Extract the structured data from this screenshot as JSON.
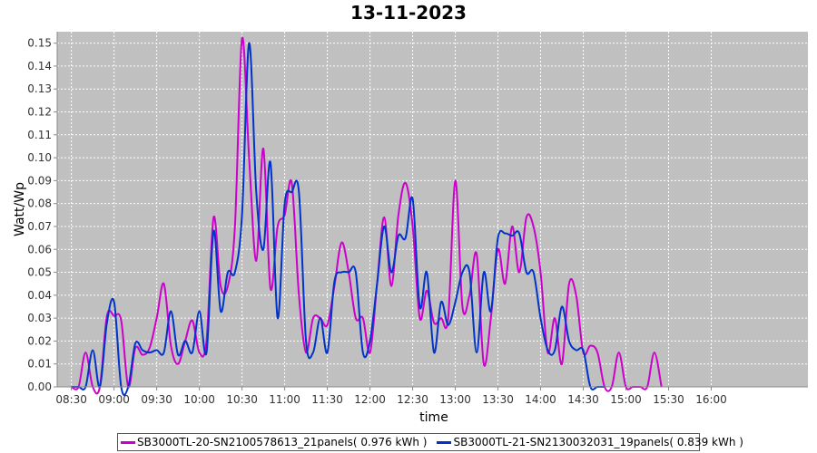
{
  "chart_data": {
    "type": "line",
    "title": "13-11-2023",
    "xlabel": "time",
    "ylabel": "Watt/Wp",
    "ylim": [
      0,
      0.155
    ],
    "xlim": [
      "08:20",
      "17:08"
    ],
    "grid": true,
    "legend_position": "bottom",
    "x_ticks": [
      "08:30",
      "09:00",
      "09:30",
      "10:00",
      "10:30",
      "11:00",
      "11:30",
      "12:00",
      "12:30",
      "13:00",
      "13:30",
      "14:00",
      "14:30",
      "15:00",
      "15:30",
      "16:00"
    ],
    "y_ticks": [
      "0.00",
      "0.01",
      "0.02",
      "0.03",
      "0.04",
      "0.05",
      "0.06",
      "0.07",
      "0.08",
      "0.09",
      "0.10",
      "0.11",
      "0.12",
      "0.13",
      "0.14",
      "0.15"
    ],
    "series": [
      {
        "name": "SB3000TL-20-SN2100578613_21panels( 0.976 kWh )",
        "color": "#cc00cc",
        "points": [
          [
            "08:30",
            0.0
          ],
          [
            "08:35",
            0.0
          ],
          [
            "08:40",
            0.015
          ],
          [
            "08:45",
            0.0
          ],
          [
            "08:50",
            0.0
          ],
          [
            "08:55",
            0.031
          ],
          [
            "09:00",
            0.031
          ],
          [
            "09:05",
            0.029
          ],
          [
            "09:10",
            0.0
          ],
          [
            "09:15",
            0.017
          ],
          [
            "09:20",
            0.014
          ],
          [
            "09:25",
            0.017
          ],
          [
            "09:30",
            0.03
          ],
          [
            "09:35",
            0.045
          ],
          [
            "09:40",
            0.018
          ],
          [
            "09:45",
            0.01
          ],
          [
            "09:50",
            0.02
          ],
          [
            "09:55",
            0.029
          ],
          [
            "10:00",
            0.015
          ],
          [
            "10:05",
            0.02
          ],
          [
            "10:10",
            0.074
          ],
          [
            "10:15",
            0.044
          ],
          [
            "10:20",
            0.044
          ],
          [
            "10:25",
            0.07
          ],
          [
            "10:30",
            0.152
          ],
          [
            "10:35",
            0.1
          ],
          [
            "10:40",
            0.055
          ],
          [
            "10:45",
            0.104
          ],
          [
            "10:50",
            0.043
          ],
          [
            "10:55",
            0.07
          ],
          [
            "11:00",
            0.075
          ],
          [
            "11:05",
            0.089
          ],
          [
            "11:10",
            0.04
          ],
          [
            "11:15",
            0.015
          ],
          [
            "11:20",
            0.03
          ],
          [
            "11:25",
            0.03
          ],
          [
            "11:30",
            0.027
          ],
          [
            "11:35",
            0.044
          ],
          [
            "11:40",
            0.063
          ],
          [
            "11:45",
            0.05
          ],
          [
            "11:50",
            0.03
          ],
          [
            "11:55",
            0.03
          ],
          [
            "12:00",
            0.015
          ],
          [
            "12:05",
            0.045
          ],
          [
            "12:10",
            0.074
          ],
          [
            "12:15",
            0.044
          ],
          [
            "12:20",
            0.075
          ],
          [
            "12:25",
            0.089
          ],
          [
            "12:30",
            0.07
          ],
          [
            "12:35",
            0.03
          ],
          [
            "12:40",
            0.042
          ],
          [
            "12:45",
            0.028
          ],
          [
            "12:50",
            0.03
          ],
          [
            "12:55",
            0.03
          ],
          [
            "13:00",
            0.09
          ],
          [
            "13:05",
            0.035
          ],
          [
            "13:10",
            0.04
          ],
          [
            "13:15",
            0.058
          ],
          [
            "13:20",
            0.01
          ],
          [
            "13:25",
            0.03
          ],
          [
            "13:30",
            0.06
          ],
          [
            "13:35",
            0.045
          ],
          [
            "13:40",
            0.07
          ],
          [
            "13:45",
            0.05
          ],
          [
            "13:50",
            0.074
          ],
          [
            "13:55",
            0.07
          ],
          [
            "14:00",
            0.05
          ],
          [
            "14:05",
            0.015
          ],
          [
            "14:10",
            0.03
          ],
          [
            "14:15",
            0.01
          ],
          [
            "14:20",
            0.045
          ],
          [
            "14:25",
            0.04
          ],
          [
            "14:30",
            0.015
          ],
          [
            "14:35",
            0.018
          ],
          [
            "14:40",
            0.015
          ],
          [
            "14:45",
            0.0
          ],
          [
            "14:50",
            0.0
          ],
          [
            "14:55",
            0.015
          ],
          [
            "15:00",
            0.0
          ],
          [
            "15:05",
            0.0
          ],
          [
            "15:10",
            0.0
          ],
          [
            "15:15",
            0.0
          ],
          [
            "15:20",
            0.015
          ],
          [
            "15:25",
            0.0
          ]
        ]
      },
      {
        "name": "SB3000TL-21-SN2130032031_19panels( 0.839 kWh )",
        "color": "#0033cc",
        "points": [
          [
            "08:30",
            0.0
          ],
          [
            "08:35",
            0.0
          ],
          [
            "08:40",
            0.0
          ],
          [
            "08:45",
            0.016
          ],
          [
            "08:50",
            0.0
          ],
          [
            "08:55",
            0.028
          ],
          [
            "09:00",
            0.037
          ],
          [
            "09:05",
            0.0
          ],
          [
            "09:10",
            0.0
          ],
          [
            "09:15",
            0.019
          ],
          [
            "09:20",
            0.016
          ],
          [
            "09:25",
            0.015
          ],
          [
            "09:30",
            0.016
          ],
          [
            "09:35",
            0.015
          ],
          [
            "09:40",
            0.033
          ],
          [
            "09:45",
            0.014
          ],
          [
            "09:50",
            0.02
          ],
          [
            "09:55",
            0.015
          ],
          [
            "10:00",
            0.033
          ],
          [
            "10:05",
            0.015
          ],
          [
            "10:10",
            0.068
          ],
          [
            "10:15",
            0.033
          ],
          [
            "10:20",
            0.05
          ],
          [
            "10:25",
            0.05
          ],
          [
            "10:30",
            0.075
          ],
          [
            "10:35",
            0.15
          ],
          [
            "10:40",
            0.085
          ],
          [
            "10:45",
            0.06
          ],
          [
            "10:50",
            0.098
          ],
          [
            "10:55",
            0.03
          ],
          [
            "11:00",
            0.08
          ],
          [
            "11:05",
            0.085
          ],
          [
            "11:10",
            0.085
          ],
          [
            "11:15",
            0.02
          ],
          [
            "11:20",
            0.015
          ],
          [
            "11:25",
            0.03
          ],
          [
            "11:30",
            0.015
          ],
          [
            "11:35",
            0.046
          ],
          [
            "11:40",
            0.05
          ],
          [
            "11:45",
            0.05
          ],
          [
            "11:50",
            0.05
          ],
          [
            "11:55",
            0.015
          ],
          [
            "12:00",
            0.02
          ],
          [
            "12:05",
            0.045
          ],
          [
            "12:10",
            0.07
          ],
          [
            "12:15",
            0.05
          ],
          [
            "12:20",
            0.066
          ],
          [
            "12:25",
            0.065
          ],
          [
            "12:30",
            0.082
          ],
          [
            "12:35",
            0.035
          ],
          [
            "12:40",
            0.05
          ],
          [
            "12:45",
            0.015
          ],
          [
            "12:50",
            0.037
          ],
          [
            "12:55",
            0.027
          ],
          [
            "13:00",
            0.037
          ],
          [
            "13:05",
            0.05
          ],
          [
            "13:10",
            0.05
          ],
          [
            "13:15",
            0.015
          ],
          [
            "13:20",
            0.05
          ],
          [
            "13:25",
            0.033
          ],
          [
            "13:30",
            0.065
          ],
          [
            "13:35",
            0.067
          ],
          [
            "13:40",
            0.066
          ],
          [
            "13:45",
            0.067
          ],
          [
            "13:50",
            0.05
          ],
          [
            "13:55",
            0.05
          ],
          [
            "14:00",
            0.03
          ],
          [
            "14:05",
            0.016
          ],
          [
            "14:10",
            0.016
          ],
          [
            "14:15",
            0.035
          ],
          [
            "14:20",
            0.02
          ],
          [
            "14:25",
            0.016
          ],
          [
            "14:30",
            0.016
          ],
          [
            "14:35",
            0.0
          ],
          [
            "14:40",
            0.0
          ],
          [
            "14:45",
            0.0
          ]
        ]
      }
    ]
  }
}
